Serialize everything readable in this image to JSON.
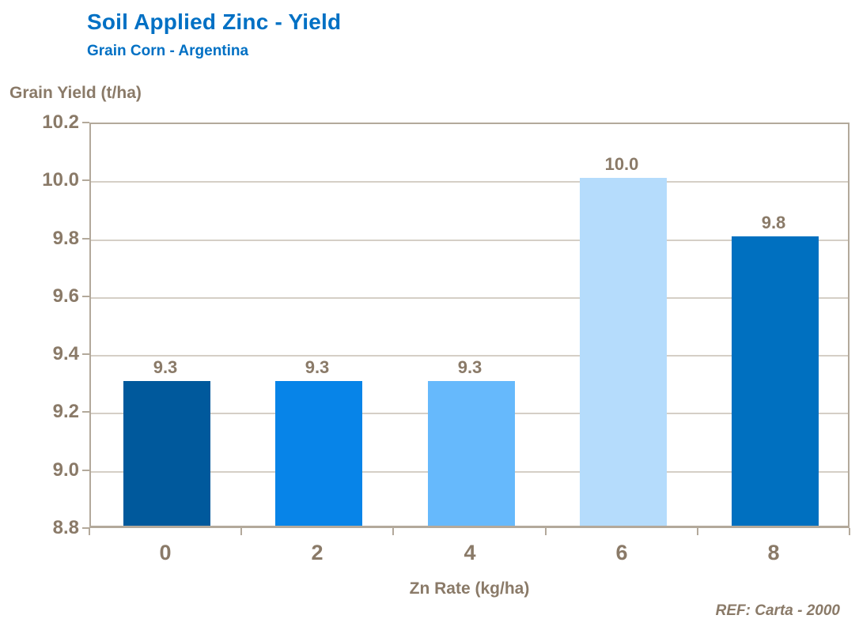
{
  "header": {
    "title": "Soil Applied Zinc - Yield",
    "subtitle": "Grain Corn - Argentina"
  },
  "footer": {
    "reference": "REF: Carta - 2000"
  },
  "chart_data": {
    "type": "bar",
    "title": "Soil Applied Zinc - Yield",
    "subtitle": "Grain Corn - Argentina",
    "categories": [
      "0",
      "2",
      "4",
      "6",
      "8"
    ],
    "values": [
      9.3,
      9.3,
      9.3,
      10.0,
      9.8
    ],
    "value_labels": [
      "9.3",
      "9.3",
      "9.3",
      "10.0",
      "9.8"
    ],
    "xlabel": "Zn Rate (kg/ha)",
    "ylabel": "Grain Yield (t/ha)",
    "ylim": [
      8.8,
      10.2
    ],
    "ytick_step": 0.2,
    "ytick_labels": [
      "10.2",
      "10.0",
      "9.8",
      "9.6",
      "9.4",
      "9.2",
      "9.0",
      "8.8"
    ],
    "grid": true,
    "legend_position": "none",
    "bar_colors": [
      "#00599C",
      "#0784E8",
      "#66B9FC",
      "#B5DCFC",
      "#0070C0"
    ],
    "colors": {
      "title_blue": "#0070C4",
      "axis_text": "#8A7A68",
      "grid_line": "#D5CFC6",
      "axis_line": "#B3A99B",
      "background": "#FFFFFF"
    }
  }
}
